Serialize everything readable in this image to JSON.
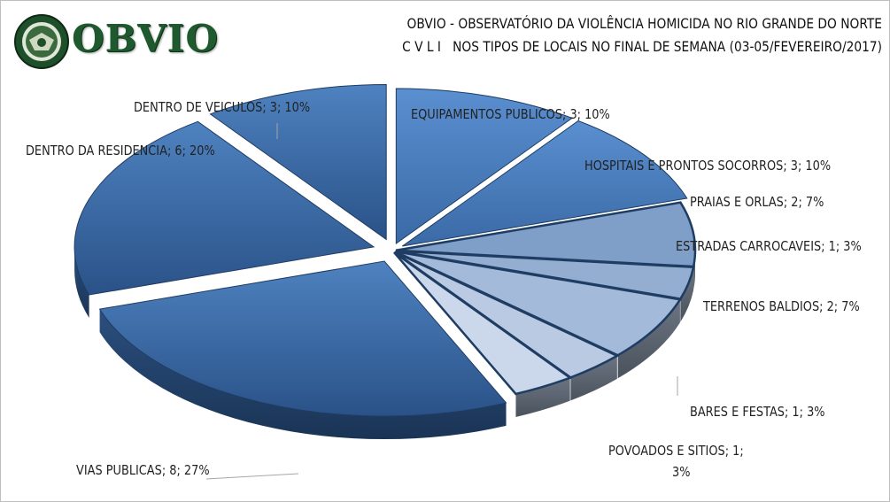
{
  "header": {
    "logo_text": "OBVIO",
    "title_line1": "OBVIO - OBSERVATÓRIO DA VIOLÊNCIA HOMICIDA NO RIO GRANDE DO NORTE",
    "title_line2": "C V L I   NOS TIPOS DE LOCAIS NO FINAL DE SEMANA (03-05/FEVEREIRO/2017)"
  },
  "chart_data": {
    "type": "pie",
    "title": "C V L I NOS TIPOS DE LOCAIS NO FINAL DE SEMANA (03-05/FEVEREIRO/2017)",
    "style": "3d-exploded",
    "categories": [
      "EQUIPAMENTOS PUBLICOS",
      "HOSPITAIS E PRONTOS SOCORROS",
      "PRAIAS E ORLAS",
      "ESTRADAS CARROCAVEIS",
      "TERRENOS BALDIOS",
      "BARES E FESTAS",
      "POVOADOS E SITIOS",
      "VIAS PUBLICAS",
      "DENTRO DA RESIDENCIA",
      "DENTRO DE VEICULOS"
    ],
    "values": [
      3,
      3,
      2,
      1,
      2,
      1,
      1,
      8,
      6,
      3
    ],
    "percent_labels": [
      "10%",
      "10%",
      "7%",
      "3%",
      "7%",
      "3%",
      "3%",
      "27%",
      "20%",
      "10%"
    ],
    "data_labels": [
      "EQUIPAMENTOS PUBLICOS; 3; 10%",
      "HOSPITAIS E PRONTOS SOCORROS; 3; 10%",
      "PRAIAS E ORLAS; 2; 7%",
      "ESTRADAS CARROCAVEIS; 1; 3%",
      "TERRENOS BALDIOS; 2; 7%",
      "BARES E FESTAS; 1; 3%",
      "POVOADOS E SITIOS; 1;",
      "VIAS PUBLICAS; 8; 27%",
      "DENTRO DA RESIDENCIA; 6; 20%",
      "DENTRO DE VEICULOS; 3; 10%"
    ],
    "label_continuation": {
      "6": "3%"
    },
    "colors": [
      "#4a80c2",
      "#4a80c2",
      "#7f9ec8",
      "#94aed2",
      "#a3bada",
      "#b9cae2",
      "#cbd7ea",
      "#3e6ea8",
      "#3e6ea8",
      "#3e6ea8"
    ],
    "legend": "none"
  }
}
